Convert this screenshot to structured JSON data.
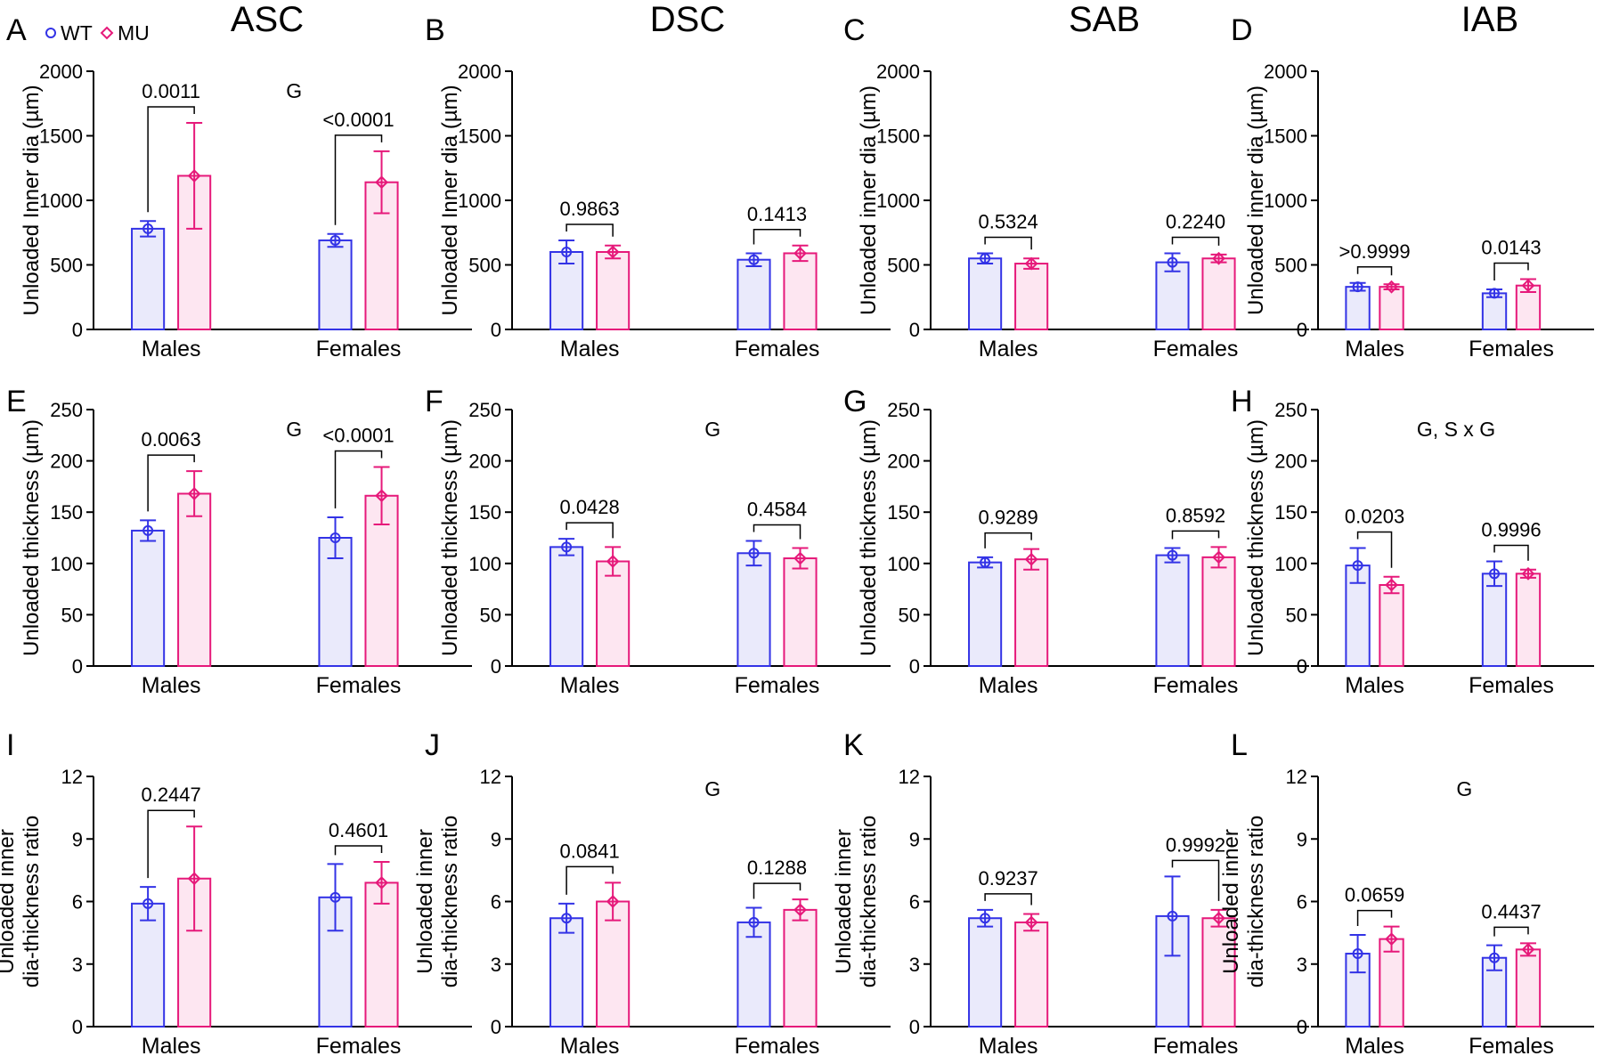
{
  "figure": {
    "legend": {
      "wt_label": "WT",
      "mu_label": "MU"
    },
    "column_titles": [
      "ASC",
      "DSC",
      "SAB",
      "IAB"
    ],
    "colors": {
      "wt": "#3333e6",
      "mu": "#e6197a",
      "wt_fill": "#eaeafb",
      "mu_fill": "#fde6f1"
    }
  },
  "chart_data": [
    {
      "type": "bar",
      "panel": "A",
      "column": "ASC",
      "ylabel": "Unloaded Inner dia (µm)",
      "ylim": [
        0,
        2000
      ],
      "yticks": [
        0,
        500,
        1000,
        1500,
        2000
      ],
      "yticklabels": [
        "0",
        "500",
        "1000",
        "1500",
        "2000"
      ],
      "categories": [
        "Males",
        "Females"
      ],
      "annotation": "G",
      "series": [
        {
          "name": "WT",
          "values": [
            780,
            690
          ],
          "sd": [
            60,
            50
          ]
        },
        {
          "name": "MU",
          "values": [
            1190,
            1140
          ],
          "sd": [
            410,
            240
          ]
        }
      ],
      "pvalues": [
        "0.0011",
        "<0.0001"
      ]
    },
    {
      "type": "bar",
      "panel": "B",
      "column": "DSC",
      "ylabel": "Unloaded Inner dia (µm)",
      "ylim": [
        0,
        2000
      ],
      "yticks": [
        0,
        500,
        1000,
        1500,
        2000
      ],
      "yticklabels": [
        "0",
        "500",
        "1000",
        "1500",
        "2000"
      ],
      "categories": [
        "Males",
        "Females"
      ],
      "annotation": "",
      "series": [
        {
          "name": "WT",
          "values": [
            600,
            540
          ],
          "sd": [
            90,
            50
          ]
        },
        {
          "name": "MU",
          "values": [
            600,
            590
          ],
          "sd": [
            50,
            60
          ]
        }
      ],
      "pvalues": [
        "0.9863",
        "0.1413"
      ]
    },
    {
      "type": "bar",
      "panel": "C",
      "column": "SAB",
      "ylabel": "Unloaded inner dia (µm)",
      "ylim": [
        0,
        2000
      ],
      "yticks": [
        0,
        500,
        1000,
        1500,
        2000
      ],
      "yticklabels": [
        "0",
        "500",
        "1000",
        "1500",
        "2000"
      ],
      "categories": [
        "Males",
        "Females"
      ],
      "annotation": "",
      "series": [
        {
          "name": "WT",
          "values": [
            550,
            520
          ],
          "sd": [
            40,
            70
          ]
        },
        {
          "name": "MU",
          "values": [
            510,
            550
          ],
          "sd": [
            40,
            30
          ]
        }
      ],
      "pvalues": [
        "0.5324",
        "0.2240"
      ]
    },
    {
      "type": "bar",
      "panel": "D",
      "column": "IAB",
      "ylabel": "Unloaded inner dia (µm)",
      "ylim": [
        0,
        2000
      ],
      "yticks": [
        0,
        500,
        1000,
        1500,
        2000
      ],
      "yticklabels": [
        "0",
        "500",
        "1000",
        "1500",
        "2000"
      ],
      "categories": [
        "Males",
        "Females"
      ],
      "annotation": "",
      "series": [
        {
          "name": "WT",
          "values": [
            330,
            280
          ],
          "sd": [
            30,
            30
          ]
        },
        {
          "name": "MU",
          "values": [
            330,
            340
          ],
          "sd": [
            20,
            50
          ]
        }
      ],
      "pvalues": [
        ">0.9999",
        "0.0143"
      ]
    },
    {
      "type": "bar",
      "panel": "E",
      "column": "ASC",
      "ylabel": "Unloaded thickness (µm)",
      "ylim": [
        0,
        250
      ],
      "yticks": [
        0,
        50,
        100,
        150,
        200,
        250
      ],
      "yticklabels": [
        "0",
        "50",
        "100",
        "150",
        "200",
        "250"
      ],
      "categories": [
        "Males",
        "Females"
      ],
      "annotation": "G",
      "series": [
        {
          "name": "WT",
          "values": [
            132,
            125
          ],
          "sd": [
            10,
            20
          ]
        },
        {
          "name": "MU",
          "values": [
            168,
            166
          ],
          "sd": [
            22,
            28
          ]
        }
      ],
      "pvalues": [
        "0.0063",
        "<0.0001"
      ]
    },
    {
      "type": "bar",
      "panel": "F",
      "column": "DSC",
      "ylabel": "Unloaded thickness (µm)",
      "ylim": [
        0,
        250
      ],
      "yticks": [
        0,
        50,
        100,
        150,
        200,
        250
      ],
      "yticklabels": [
        "0",
        "50",
        "100",
        "150",
        "200",
        "250"
      ],
      "categories": [
        "Males",
        "Females"
      ],
      "annotation": "G",
      "series": [
        {
          "name": "WT",
          "values": [
            116,
            110
          ],
          "sd": [
            8,
            12
          ]
        },
        {
          "name": "MU",
          "values": [
            102,
            105
          ],
          "sd": [
            14,
            10
          ]
        }
      ],
      "pvalues": [
        "0.0428",
        "0.4584"
      ]
    },
    {
      "type": "bar",
      "panel": "G",
      "column": "SAB",
      "ylabel": "Unloaded thickness (µm)",
      "ylim": [
        0,
        250
      ],
      "yticks": [
        0,
        50,
        100,
        150,
        200,
        250
      ],
      "yticklabels": [
        "0",
        "50",
        "100",
        "150",
        "200",
        "250"
      ],
      "categories": [
        "Males",
        "Females"
      ],
      "annotation": "",
      "series": [
        {
          "name": "WT",
          "values": [
            101,
            108
          ],
          "sd": [
            5,
            7
          ]
        },
        {
          "name": "MU",
          "values": [
            104,
            106
          ],
          "sd": [
            10,
            10
          ]
        }
      ],
      "pvalues": [
        "0.9289",
        "0.8592"
      ]
    },
    {
      "type": "bar",
      "panel": "H",
      "column": "IAB",
      "ylabel": "Unloaded thickness (µm)",
      "ylim": [
        0,
        250
      ],
      "yticks": [
        0,
        50,
        100,
        150,
        200,
        250
      ],
      "yticklabels": [
        "0",
        "50",
        "100",
        "150",
        "200",
        "250"
      ],
      "categories": [
        "Males",
        "Females"
      ],
      "annotation": "G, S x G",
      "series": [
        {
          "name": "WT",
          "values": [
            98,
            90
          ],
          "sd": [
            17,
            12
          ]
        },
        {
          "name": "MU",
          "values": [
            79,
            90
          ],
          "sd": [
            8,
            4
          ]
        }
      ],
      "pvalues": [
        "0.0203",
        "0.9996"
      ]
    },
    {
      "type": "bar",
      "panel": "I",
      "column": "ASC",
      "ylabel": "Unloaded inner dia-thickness ratio",
      "ylim": [
        0,
        12
      ],
      "yticks": [
        0,
        3,
        6,
        9,
        12
      ],
      "yticklabels": [
        "0",
        "3",
        "6",
        "9",
        "12"
      ],
      "categories": [
        "Males",
        "Females"
      ],
      "annotation": "",
      "series": [
        {
          "name": "WT",
          "values": [
            5.9,
            6.2
          ],
          "sd": [
            0.8,
            1.6
          ]
        },
        {
          "name": "MU",
          "values": [
            7.1,
            6.9
          ],
          "sd": [
            2.5,
            1.0
          ]
        }
      ],
      "pvalues": [
        "0.2447",
        "0.4601"
      ]
    },
    {
      "type": "bar",
      "panel": "J",
      "column": "DSC",
      "ylabel": "Unloaded inner dia-thickness ratio",
      "ylim": [
        0,
        12
      ],
      "yticks": [
        0,
        3,
        6,
        9,
        12
      ],
      "yticklabels": [
        "0",
        "3",
        "6",
        "9",
        "12"
      ],
      "categories": [
        "Males",
        "Females"
      ],
      "annotation": "G",
      "series": [
        {
          "name": "WT",
          "values": [
            5.2,
            5.0
          ],
          "sd": [
            0.7,
            0.7
          ]
        },
        {
          "name": "MU",
          "values": [
            6.0,
            5.6
          ],
          "sd": [
            0.9,
            0.5
          ]
        }
      ],
      "pvalues": [
        "0.0841",
        "0.1288"
      ]
    },
    {
      "type": "bar",
      "panel": "K",
      "column": "SAB",
      "ylabel": "Unloaded inner dia-thickness ratio",
      "ylim": [
        0,
        12
      ],
      "yticks": [
        0,
        3,
        6,
        9,
        12
      ],
      "yticklabels": [
        "0",
        "3",
        "6",
        "9",
        "12"
      ],
      "categories": [
        "Males",
        "Females"
      ],
      "annotation": "",
      "series": [
        {
          "name": "WT",
          "values": [
            5.2,
            5.3
          ],
          "sd": [
            0.4,
            1.9
          ]
        },
        {
          "name": "MU",
          "values": [
            5.0,
            5.2
          ],
          "sd": [
            0.4,
            0.4
          ]
        }
      ],
      "pvalues": [
        "0.9237",
        "0.9992"
      ]
    },
    {
      "type": "bar",
      "panel": "L",
      "column": "IAB",
      "ylabel": "Unloaded inner dia-thickness ratio",
      "ylim": [
        0,
        12
      ],
      "yticks": [
        0,
        3,
        6,
        9,
        12
      ],
      "yticklabels": [
        "0",
        "3",
        "6",
        "9",
        "12"
      ],
      "categories": [
        "Males",
        "Females"
      ],
      "annotation": "G",
      "series": [
        {
          "name": "WT",
          "values": [
            3.5,
            3.3
          ],
          "sd": [
            0.9,
            0.6
          ]
        },
        {
          "name": "MU",
          "values": [
            4.2,
            3.7
          ],
          "sd": [
            0.6,
            0.3
          ]
        }
      ],
      "pvalues": [
        "0.0659",
        "0.4437"
      ]
    }
  ]
}
